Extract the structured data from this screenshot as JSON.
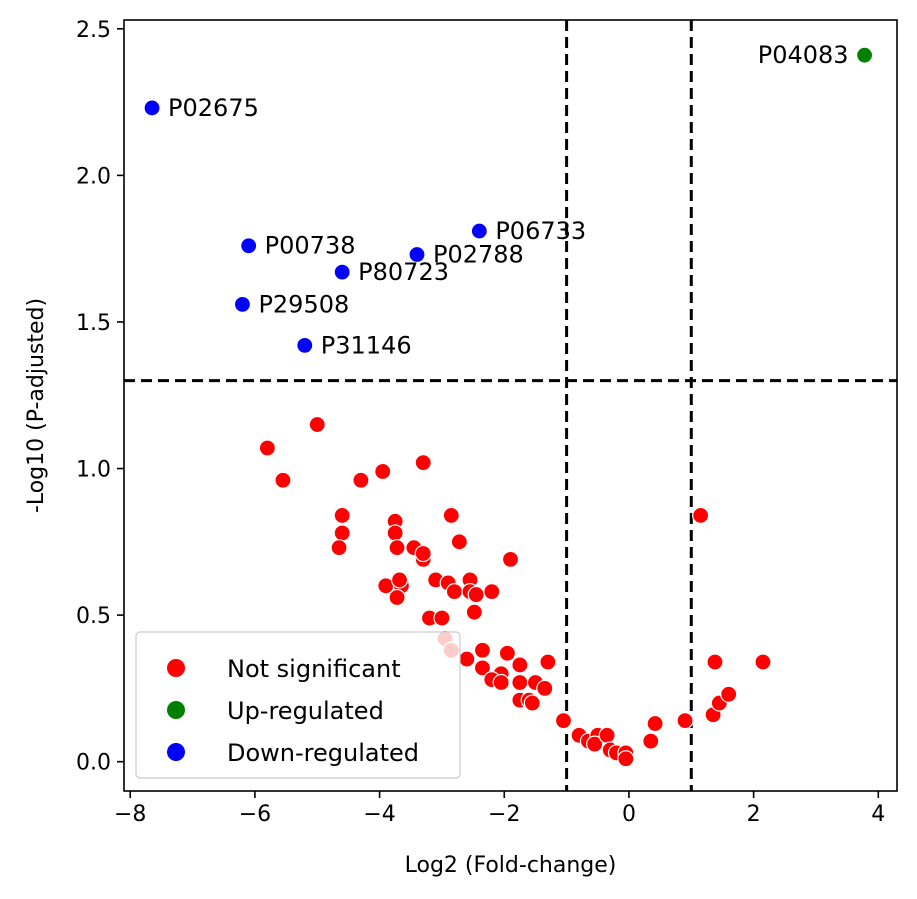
{
  "chart_data": {
    "type": "scatter",
    "title": "",
    "xlabel": "Log2 (Fold-change)",
    "ylabel": "-Log10 (P-adjusted)",
    "xlim": [
      -8.1,
      4.3
    ],
    "ylim": [
      -0.1,
      2.53
    ],
    "x_ticks": [
      -8,
      -6,
      -4,
      -2,
      0,
      2,
      4
    ],
    "x_tick_labels": [
      "−8",
      "−6",
      "−4",
      "−2",
      "0",
      "2",
      "4"
    ],
    "y_ticks": [
      0.0,
      0.5,
      1.0,
      1.5,
      2.0,
      2.5
    ],
    "y_tick_labels": [
      "0.0",
      "0.5",
      "1.0",
      "1.5",
      "2.0",
      "2.5"
    ],
    "thresholds": {
      "x": [
        -1,
        1
      ],
      "y": 1.3
    },
    "grid": false,
    "legend_position": "lower-left",
    "colors": {
      "not_significant": "#ff0000",
      "up": "#008000",
      "down": "#0000ff",
      "threshold_line": "#000000"
    },
    "series": [
      {
        "name": "Not significant",
        "color": "#ff0000",
        "points": [
          [
            -5.8,
            1.07
          ],
          [
            -5.55,
            0.96
          ],
          [
            -5.0,
            1.15
          ],
          [
            -4.3,
            0.96
          ],
          [
            -3.95,
            0.99
          ],
          [
            -3.3,
            1.02
          ],
          [
            -4.6,
            0.84
          ],
          [
            -4.6,
            0.78
          ],
          [
            -4.65,
            0.73
          ],
          [
            -3.75,
            0.82
          ],
          [
            -3.75,
            0.78
          ],
          [
            -3.72,
            0.73
          ],
          [
            -3.45,
            0.73
          ],
          [
            -3.3,
            0.69
          ],
          [
            -3.3,
            0.71
          ],
          [
            -2.85,
            0.84
          ],
          [
            -2.72,
            0.75
          ],
          [
            -1.9,
            0.69
          ],
          [
            -3.9,
            0.6
          ],
          [
            -3.65,
            0.6
          ],
          [
            -3.68,
            0.62
          ],
          [
            -3.72,
            0.56
          ],
          [
            -3.1,
            0.62
          ],
          [
            -2.9,
            0.61
          ],
          [
            -2.8,
            0.58
          ],
          [
            -2.55,
            0.62
          ],
          [
            -2.55,
            0.58
          ],
          [
            -2.45,
            0.57
          ],
          [
            -2.2,
            0.58
          ],
          [
            -2.48,
            0.51
          ],
          [
            -3.2,
            0.49
          ],
          [
            -3.0,
            0.49
          ],
          [
            -2.95,
            0.42
          ],
          [
            -2.85,
            0.38
          ],
          [
            -2.6,
            0.35
          ],
          [
            -2.35,
            0.38
          ],
          [
            -1.95,
            0.37
          ],
          [
            -1.75,
            0.33
          ],
          [
            -1.3,
            0.34
          ],
          [
            -2.35,
            0.32
          ],
          [
            -2.05,
            0.3
          ],
          [
            -2.2,
            0.28
          ],
          [
            -2.05,
            0.27
          ],
          [
            -1.75,
            0.27
          ],
          [
            -1.75,
            0.21
          ],
          [
            -1.6,
            0.21
          ],
          [
            -1.55,
            0.2
          ],
          [
            -1.5,
            0.27
          ],
          [
            -1.35,
            0.25
          ],
          [
            -1.05,
            0.14
          ],
          [
            -0.8,
            0.09
          ],
          [
            -0.65,
            0.07
          ],
          [
            -0.5,
            0.09
          ],
          [
            -0.55,
            0.06
          ],
          [
            -0.35,
            0.09
          ],
          [
            -0.3,
            0.04
          ],
          [
            -0.2,
            0.03
          ],
          [
            -0.05,
            0.03
          ],
          [
            -0.05,
            0.01
          ],
          [
            0.35,
            0.07
          ],
          [
            0.42,
            0.13
          ],
          [
            0.9,
            0.14
          ],
          [
            1.15,
            0.84
          ],
          [
            1.38,
            0.34
          ],
          [
            1.35,
            0.16
          ],
          [
            1.45,
            0.2
          ],
          [
            1.6,
            0.23
          ],
          [
            2.15,
            0.34
          ]
        ]
      },
      {
        "name": "Up-regulated",
        "color": "#008000",
        "points": [
          [
            3.78,
            2.41,
            "P04083"
          ]
        ]
      },
      {
        "name": "Down-regulated",
        "color": "#0000ff",
        "points": [
          [
            -7.65,
            2.23,
            "P02675"
          ],
          [
            -6.1,
            1.76,
            "P00738"
          ],
          [
            -2.4,
            1.81,
            "P06733"
          ],
          [
            -3.4,
            1.73,
            "P02788"
          ],
          [
            -4.6,
            1.67,
            "P80723"
          ],
          [
            -6.2,
            1.56,
            "P29508"
          ],
          [
            -5.2,
            1.42,
            "P31146"
          ]
        ]
      }
    ],
    "legend": [
      "Not significant",
      "Up-regulated",
      "Down-regulated"
    ]
  }
}
